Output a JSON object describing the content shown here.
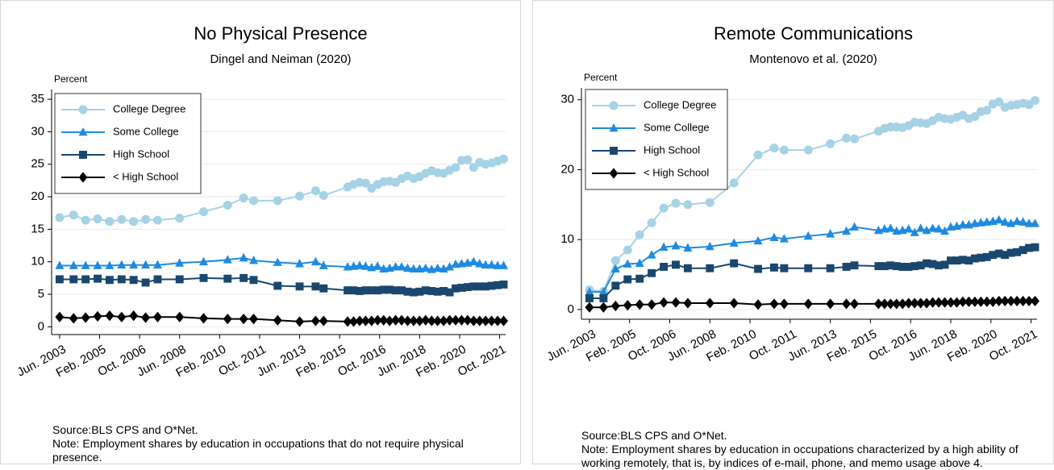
{
  "chart_data": [
    {
      "type": "line",
      "title": "No Physical Presence",
      "subtitle": "Dingel and Neiman (2020)",
      "ylabel": "Percent",
      "x": [
        "2003-06",
        "2004-01",
        "2004-07",
        "2005-01",
        "2005-07",
        "2006-01",
        "2006-07",
        "2007-01",
        "2007-07",
        "2008-06",
        "2009-06",
        "2010-06",
        "2011-02",
        "2011-07",
        "2012-07",
        "2013-06",
        "2014-02",
        "2014-06",
        "2015-06",
        "2015-09",
        "2015-12",
        "2016-03",
        "2016-06",
        "2016-09",
        "2016-12",
        "2017-03",
        "2017-06",
        "2017-09",
        "2017-12",
        "2018-03",
        "2018-06",
        "2018-09",
        "2018-12",
        "2019-03",
        "2019-06",
        "2019-09",
        "2019-12",
        "2020-03",
        "2020-06",
        "2020-09",
        "2020-12",
        "2021-03",
        "2021-06",
        "2021-09",
        "2021-12"
      ],
      "xlim": [
        "2003-02",
        "2022-01"
      ],
      "xticks": [
        {
          "value": "2003-06",
          "label": "Jun. 2003"
        },
        {
          "value": "2005-02",
          "label": "Feb. 2005"
        },
        {
          "value": "2006-10",
          "label": "Oct. 2006"
        },
        {
          "value": "2008-06",
          "label": "Jun. 2008"
        },
        {
          "value": "2010-02",
          "label": "Feb. 2010"
        },
        {
          "value": "2011-10",
          "label": "Oct. 2011"
        },
        {
          "value": "2013-06",
          "label": "Jun. 2013"
        },
        {
          "value": "2015-02",
          "label": "Feb. 2015"
        },
        {
          "value": "2016-10",
          "label": "Oct. 2016"
        },
        {
          "value": "2018-06",
          "label": "Jun. 2018"
        },
        {
          "value": "2020-02",
          "label": "Feb. 2020"
        },
        {
          "value": "2021-10",
          "label": "Oct. 2021"
        }
      ],
      "ylim": [
        -1.2,
        36.5
      ],
      "yticks": [
        0,
        5,
        10,
        15,
        20,
        25,
        30,
        35
      ],
      "grid": true,
      "legend": "top-left",
      "series": [
        {
          "name": "College Degree",
          "color": "#a6d2e6",
          "marker": "circle",
          "values": [
            16.8,
            17.2,
            16.4,
            16.6,
            16.2,
            16.5,
            16.2,
            16.5,
            16.4,
            16.7,
            17.7,
            18.7,
            19.8,
            19.4,
            19.4,
            20.1,
            20.9,
            20.2,
            21.5,
            21.9,
            22.2,
            22.1,
            21.3,
            21.9,
            22.3,
            22.4,
            22.2,
            22.8,
            23.2,
            22.8,
            23.1,
            23.6,
            24.0,
            23.7,
            23.6,
            24.1,
            24.5,
            25.6,
            25.7,
            24.5,
            25.3,
            25.0,
            25.2,
            25.5,
            25.8
          ]
        },
        {
          "name": "Some College",
          "color": "#1f8be0",
          "marker": "triangle",
          "values": [
            9.4,
            9.4,
            9.4,
            9.4,
            9.4,
            9.5,
            9.5,
            9.5,
            9.5,
            9.8,
            10.0,
            10.3,
            10.6,
            10.2,
            9.9,
            9.7,
            10.0,
            9.4,
            9.2,
            9.3,
            9.4,
            9.3,
            9.1,
            9.3,
            8.9,
            9.0,
            9.2,
            9.2,
            9.0,
            8.9,
            8.9,
            9.0,
            8.8,
            9.0,
            8.9,
            9.2,
            9.6,
            9.7,
            9.8,
            10.0,
            9.7,
            9.5,
            9.5,
            9.4,
            9.4
          ]
        },
        {
          "name": "High School",
          "color": "#1a476f",
          "marker": "square",
          "values": [
            7.3,
            7.3,
            7.3,
            7.4,
            7.2,
            7.3,
            7.2,
            6.8,
            7.3,
            7.3,
            7.5,
            7.4,
            7.5,
            7.2,
            6.3,
            6.2,
            6.2,
            5.9,
            5.6,
            5.6,
            5.5,
            5.6,
            5.6,
            5.6,
            5.7,
            5.7,
            5.6,
            5.6,
            5.4,
            5.3,
            5.4,
            5.6,
            5.5,
            5.4,
            5.5,
            5.3,
            5.9,
            6.0,
            6.1,
            6.2,
            6.2,
            6.2,
            6.3,
            6.4,
            6.5
          ]
        },
        {
          "name": "< High School",
          "color": "#000000",
          "marker": "diamond",
          "values": [
            1.5,
            1.3,
            1.4,
            1.6,
            1.7,
            1.5,
            1.7,
            1.4,
            1.5,
            1.5,
            1.3,
            1.2,
            1.2,
            1.2,
            1.0,
            0.8,
            0.9,
            0.9,
            0.8,
            0.8,
            0.9,
            0.9,
            0.9,
            1.0,
            1.0,
            0.9,
            1.0,
            1.0,
            0.9,
            0.9,
            0.9,
            1.0,
            0.9,
            0.9,
            0.9,
            1.0,
            1.0,
            1.0,
            1.0,
            0.9,
            0.9,
            0.9,
            0.9,
            0.9,
            0.9
          ]
        }
      ],
      "source": "Source:BLS CPS and O*Net.",
      "note": "Note: Employment shares by education in occupations that do not require physical presence."
    },
    {
      "type": "line",
      "title": "Remote Communications",
      "subtitle": "Montenovo et al. (2020)",
      "ylabel": "Percent",
      "x": [
        "2003-06",
        "2004-01",
        "2004-07",
        "2005-01",
        "2005-07",
        "2006-01",
        "2006-07",
        "2007-01",
        "2007-07",
        "2008-06",
        "2009-06",
        "2010-06",
        "2011-02",
        "2011-07",
        "2012-07",
        "2013-06",
        "2014-02",
        "2014-06",
        "2015-06",
        "2015-09",
        "2015-12",
        "2016-03",
        "2016-06",
        "2016-09",
        "2016-12",
        "2017-03",
        "2017-06",
        "2017-09",
        "2017-12",
        "2018-03",
        "2018-06",
        "2018-09",
        "2018-12",
        "2019-03",
        "2019-06",
        "2019-09",
        "2019-12",
        "2020-03",
        "2020-06",
        "2020-09",
        "2020-12",
        "2021-03",
        "2021-06",
        "2021-09",
        "2021-12"
      ],
      "xlim": [
        "2003-02",
        "2022-01"
      ],
      "xticks": [
        {
          "value": "2003-06",
          "label": "Jun. 2003"
        },
        {
          "value": "2005-02",
          "label": "Feb. 2005"
        },
        {
          "value": "2006-10",
          "label": "Oct. 2006"
        },
        {
          "value": "2008-06",
          "label": "Jun. 2008"
        },
        {
          "value": "2010-02",
          "label": "Feb. 2010"
        },
        {
          "value": "2011-10",
          "label": "Oct. 2011"
        },
        {
          "value": "2013-06",
          "label": "Jun. 2013"
        },
        {
          "value": "2015-02",
          "label": "Feb. 2015"
        },
        {
          "value": "2016-10",
          "label": "Oct. 2016"
        },
        {
          "value": "2018-06",
          "label": "Jun. 2018"
        },
        {
          "value": "2020-02",
          "label": "Feb. 2020"
        },
        {
          "value": "2021-10",
          "label": "Oct. 2021"
        }
      ],
      "ylim": [
        -1.4,
        31.7
      ],
      "yticks": [
        0,
        10,
        20,
        30
      ],
      "grid": true,
      "legend": "top-left",
      "series": [
        {
          "name": "College Degree",
          "color": "#a6d2e6",
          "marker": "circle",
          "values": [
            2.8,
            2.6,
            7.0,
            8.5,
            10.7,
            12.4,
            14.5,
            15.2,
            15.0,
            15.3,
            18.1,
            22.1,
            23.1,
            22.8,
            22.8,
            23.7,
            24.5,
            24.4,
            25.5,
            25.9,
            26.1,
            26.1,
            26.0,
            26.3,
            26.8,
            26.7,
            26.6,
            27.0,
            27.5,
            27.3,
            27.2,
            27.5,
            27.8,
            27.3,
            27.6,
            28.3,
            28.5,
            29.4,
            29.7,
            28.9,
            29.2,
            29.3,
            29.5,
            29.3,
            29.9
          ]
        },
        {
          "name": "Some College",
          "color": "#1f8be0",
          "marker": "triangle",
          "values": [
            2.5,
            2.5,
            5.8,
            6.5,
            6.6,
            7.8,
            8.9,
            9.1,
            8.8,
            9.0,
            9.5,
            9.8,
            10.3,
            10.1,
            10.5,
            10.8,
            11.2,
            11.8,
            11.3,
            11.5,
            11.6,
            11.2,
            11.3,
            11.5,
            11.0,
            11.6,
            11.3,
            11.6,
            11.5,
            11.2,
            11.8,
            11.9,
            12.1,
            12.1,
            12.3,
            12.4,
            12.5,
            12.6,
            12.8,
            12.5,
            12.3,
            12.6,
            12.5,
            12.3,
            12.3
          ]
        },
        {
          "name": "High School",
          "color": "#1a476f",
          "marker": "square",
          "values": [
            1.6,
            1.6,
            3.4,
            4.3,
            4.4,
            5.2,
            6.1,
            6.4,
            5.9,
            5.9,
            6.6,
            5.8,
            6.0,
            5.9,
            5.9,
            5.9,
            6.1,
            6.3,
            6.2,
            6.2,
            6.3,
            6.2,
            6.1,
            6.1,
            6.2,
            6.3,
            6.6,
            6.5,
            6.3,
            6.4,
            7.0,
            7.0,
            7.1,
            7.0,
            7.3,
            7.4,
            7.5,
            7.8,
            8.0,
            7.8,
            8.1,
            8.2,
            8.5,
            8.8,
            8.9
          ]
        },
        {
          "name": "< High School",
          "color": "#000000",
          "marker": "diamond",
          "values": [
            0.3,
            0.3,
            0.5,
            0.6,
            0.7,
            0.7,
            1.0,
            1.0,
            0.9,
            0.9,
            0.9,
            0.7,
            0.8,
            0.8,
            0.8,
            0.8,
            0.8,
            0.8,
            0.8,
            0.8,
            0.8,
            0.8,
            0.8,
            0.9,
            0.9,
            0.9,
            0.9,
            1.0,
            1.0,
            1.0,
            1.0,
            1.0,
            1.1,
            1.1,
            1.1,
            1.1,
            1.1,
            1.1,
            1.2,
            1.2,
            1.2,
            1.2,
            1.2,
            1.2,
            1.2
          ]
        }
      ],
      "source": "Source:BLS CPS and O*Net.",
      "note": "Note: Employment shares by education in occupations characterized by a high ability of working remotely, that is, by indices of e-mail, phone, and memo usage above 4."
    }
  ]
}
